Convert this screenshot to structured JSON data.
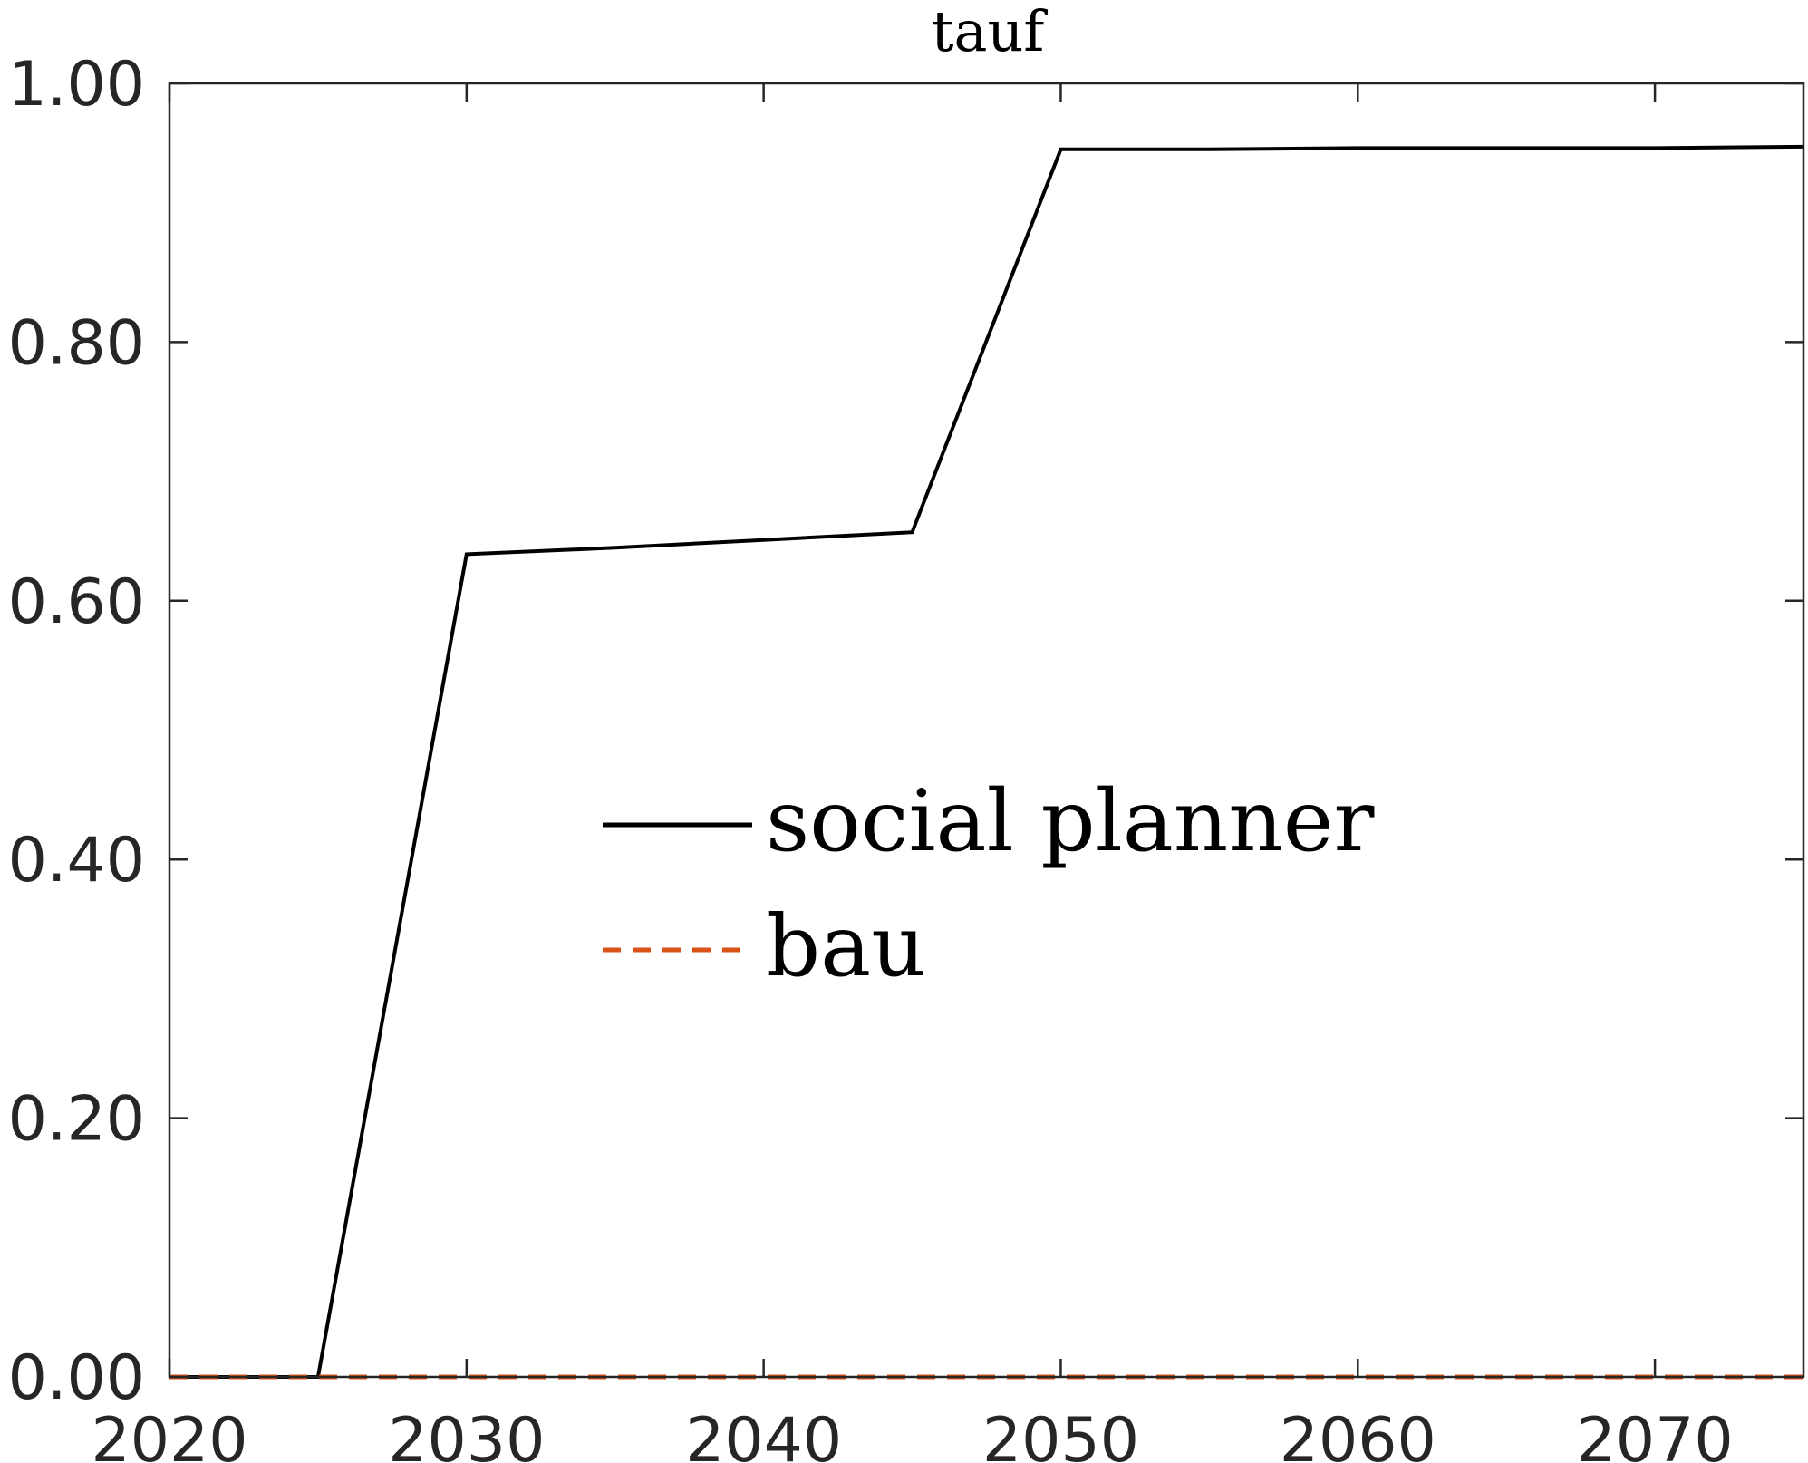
{
  "chart_data": {
    "type": "line",
    "title": "tauf",
    "xlabel": "",
    "ylabel": "",
    "xlim": [
      2020,
      2075
    ],
    "ylim": [
      0,
      1
    ],
    "xticks": [
      2020,
      2030,
      2040,
      2050,
      2060,
      2070
    ],
    "xtick_labels": [
      "2020",
      "2030",
      "2040",
      "2050",
      "2060",
      "2070"
    ],
    "yticks": [
      0,
      0.2,
      0.4,
      0.6,
      0.8,
      1.0
    ],
    "ytick_labels": [
      "0.00",
      "0.20",
      "0.40",
      "0.60",
      "0.80",
      "1.00"
    ],
    "grid": false,
    "legend_position": "center",
    "series": [
      {
        "name": "social planner",
        "color": "#000000",
        "style": "solid",
        "x": [
          2020,
          2025,
          2030,
          2035,
          2040,
          2045,
          2050,
          2055,
          2060,
          2065,
          2070,
          2075
        ],
        "y": [
          0,
          0,
          0.636,
          0.641,
          0.647,
          0.653,
          0.949,
          0.949,
          0.95,
          0.95,
          0.95,
          0.951
        ]
      },
      {
        "name": "bau",
        "color": "#D95319",
        "style": "dashed",
        "x": [
          2020,
          2025,
          2030,
          2035,
          2040,
          2045,
          2050,
          2055,
          2060,
          2065,
          2070,
          2075
        ],
        "y": [
          0,
          0,
          0,
          0,
          0,
          0,
          0,
          0,
          0,
          0,
          0,
          0
        ]
      }
    ]
  }
}
